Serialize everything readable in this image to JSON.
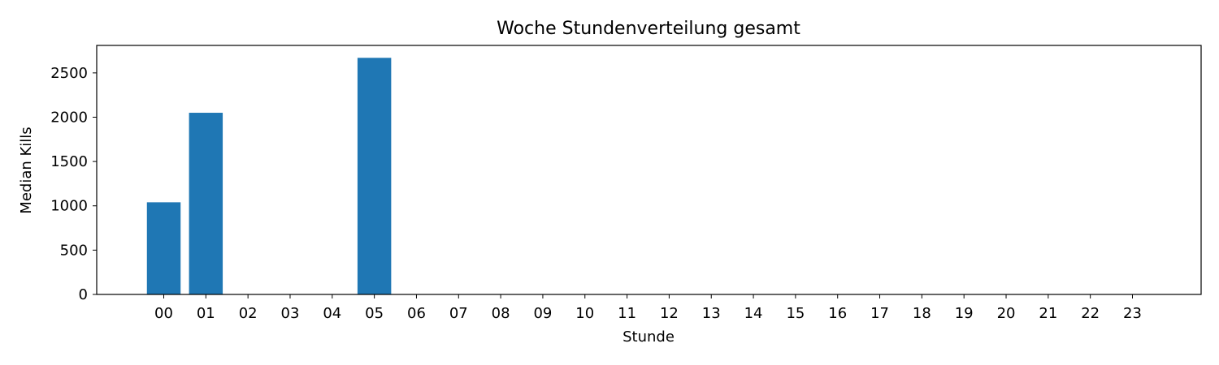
{
  "chart_data": {
    "type": "bar",
    "title": "Woche Stundenverteilung gesamt",
    "xlabel": "Stunde",
    "ylabel": "Median Kills",
    "categories": [
      "00",
      "01",
      "02",
      "03",
      "04",
      "05",
      "06",
      "07",
      "08",
      "09",
      "10",
      "11",
      "12",
      "13",
      "14",
      "15",
      "16",
      "17",
      "18",
      "19",
      "20",
      "21",
      "22",
      "23"
    ],
    "values": [
      1040,
      2050,
      0,
      0,
      0,
      2670,
      0,
      0,
      0,
      0,
      0,
      0,
      0,
      0,
      0,
      0,
      0,
      0,
      0,
      0,
      0,
      0,
      0,
      0
    ],
    "yticks": [
      0,
      500,
      1000,
      1500,
      2000,
      2500
    ],
    "ylim": [
      0,
      2810
    ],
    "grid": false,
    "bar_color": "#1f77b4"
  }
}
